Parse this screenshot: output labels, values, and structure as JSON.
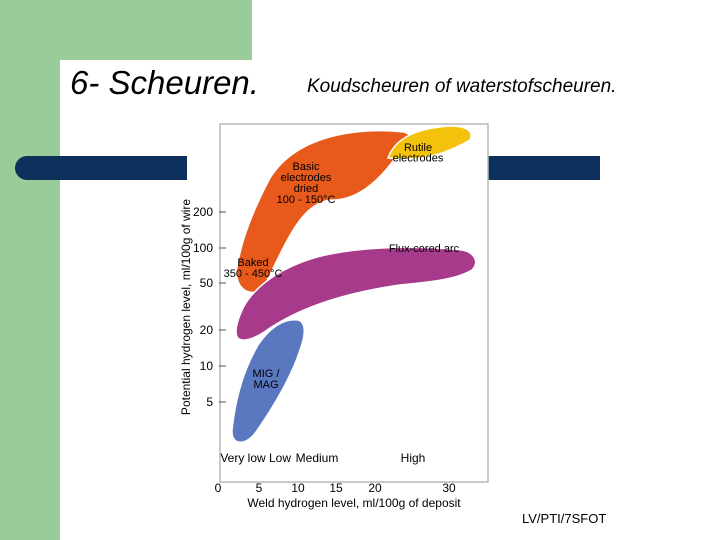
{
  "slide": {
    "title": "6- Scheuren.",
    "subtitle": "Koudscheuren  of waterstofscheuren.",
    "footer": "LV/PTI/7SFOT"
  },
  "colors": {
    "sidebar_green": "#99cc99",
    "rule_navy": "#0d2f5c",
    "basic_electrodes": "#e85a1b",
    "rutile_electrodes": "#f4c20d",
    "flux_cored_arc": "#a83a8c",
    "mig_mag": "#5a78c0"
  },
  "chart_data": {
    "type": "area",
    "xlabel": "Weld hydrogen level, ml/100g of deposit",
    "ylabel": "Potential hydrogen level, ml/100g of wire",
    "x_ticks": [
      0,
      5,
      10,
      15,
      20,
      30
    ],
    "x_tick_labels": [
      "0",
      "5",
      "10",
      "15",
      "20",
      "30"
    ],
    "y_ticks": [
      5,
      10,
      20,
      50,
      100,
      200
    ],
    "y_tick_labels": [
      "5",
      "10",
      "20",
      "50",
      "100",
      "200"
    ],
    "y_scale": "log",
    "category_labels": [
      "Very low",
      "Low",
      "Medium",
      "High"
    ],
    "regions": [
      {
        "name": "Basic electrodes dried 100 - 150°C",
        "label_lines": [
          "Basic",
          "electrodes",
          "dried",
          "100 - 150°C"
        ],
        "color": "#e85a1b"
      },
      {
        "name": "Baked 350 - 450°C",
        "label_lines": [
          "Baked",
          "350 - 450°C"
        ],
        "color": "#e85a1b"
      },
      {
        "name": "Rutile electrodes",
        "label_lines": [
          "Rutile",
          "electrodes"
        ],
        "color": "#f4c20d"
      },
      {
        "name": "Flux-cored arc",
        "label_lines": [
          "Flux-cored arc"
        ],
        "color": "#a83a8c"
      },
      {
        "name": "MIG / MAG",
        "label_lines": [
          "MIG /",
          "MAG"
        ],
        "color": "#5a78c0"
      }
    ]
  }
}
